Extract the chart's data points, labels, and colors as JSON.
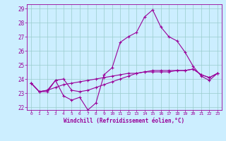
{
  "xlabel": "Windchill (Refroidissement éolien,°C)",
  "xlim": [
    -0.5,
    23.5
  ],
  "ylim": [
    21.8,
    29.3
  ],
  "yticks": [
    22,
    23,
    24,
    25,
    26,
    27,
    28,
    29
  ],
  "xticks": [
    0,
    1,
    2,
    3,
    4,
    5,
    6,
    7,
    8,
    9,
    10,
    11,
    12,
    13,
    14,
    15,
    16,
    17,
    18,
    19,
    20,
    21,
    22,
    23
  ],
  "bg_color": "#cceeff",
  "line_color": "#990099",
  "grid_color": "#99cccc",
  "line1": [
    23.7,
    23.1,
    23.1,
    23.9,
    22.8,
    22.5,
    22.7,
    21.8,
    22.3,
    24.3,
    24.8,
    26.6,
    27.0,
    27.3,
    28.4,
    28.9,
    27.7,
    27.0,
    26.7,
    25.9,
    24.9,
    24.2,
    23.9,
    24.4
  ],
  "line2": [
    23.7,
    23.1,
    23.2,
    23.9,
    24.0,
    23.2,
    23.1,
    23.2,
    23.4,
    23.6,
    23.8,
    24.0,
    24.2,
    24.4,
    24.5,
    24.6,
    24.6,
    24.6,
    24.6,
    24.6,
    24.7,
    24.3,
    24.1,
    24.4
  ],
  "line3": [
    23.7,
    23.1,
    23.2,
    23.4,
    23.6,
    23.7,
    23.8,
    23.9,
    24.0,
    24.1,
    24.2,
    24.3,
    24.4,
    24.4,
    24.5,
    24.5,
    24.5,
    24.5,
    24.6,
    24.6,
    24.7,
    24.3,
    24.1,
    24.4
  ]
}
